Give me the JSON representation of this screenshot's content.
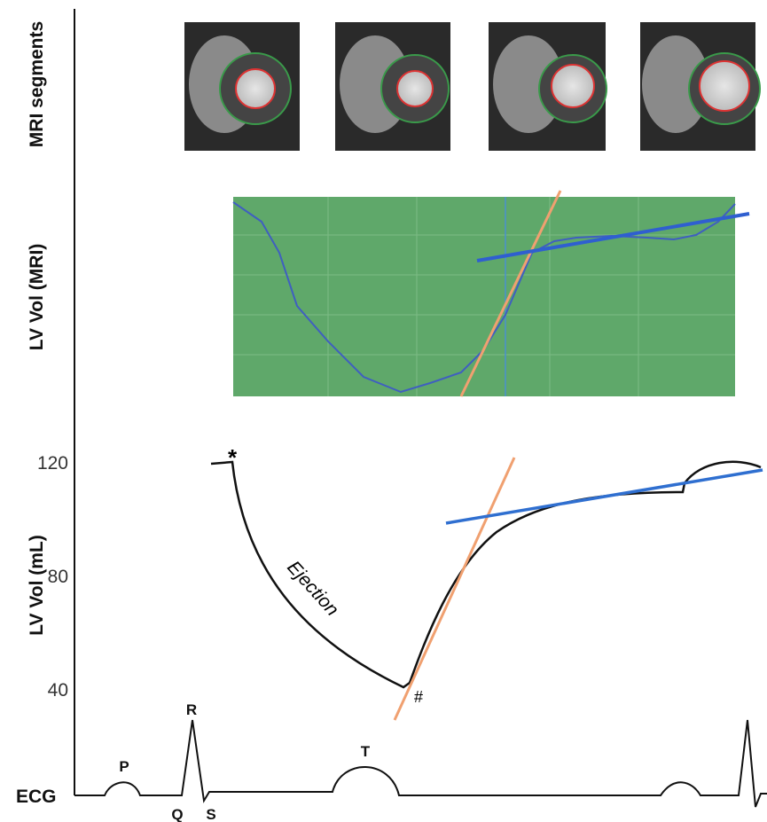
{
  "rows": {
    "mri": {
      "label": "MRI segments"
    },
    "mri_volume": {
      "label": "LV Vol (MRI)"
    },
    "volume": {
      "label": "LV Vol (mL)",
      "ticks": [
        120,
        80,
        40
      ],
      "annotation": "Ejection",
      "start_marker": "*",
      "end_marker": "#"
    },
    "ecg": {
      "label": "ECG",
      "waves": [
        "P",
        "Q",
        "R",
        "S",
        "T"
      ]
    }
  }
}
